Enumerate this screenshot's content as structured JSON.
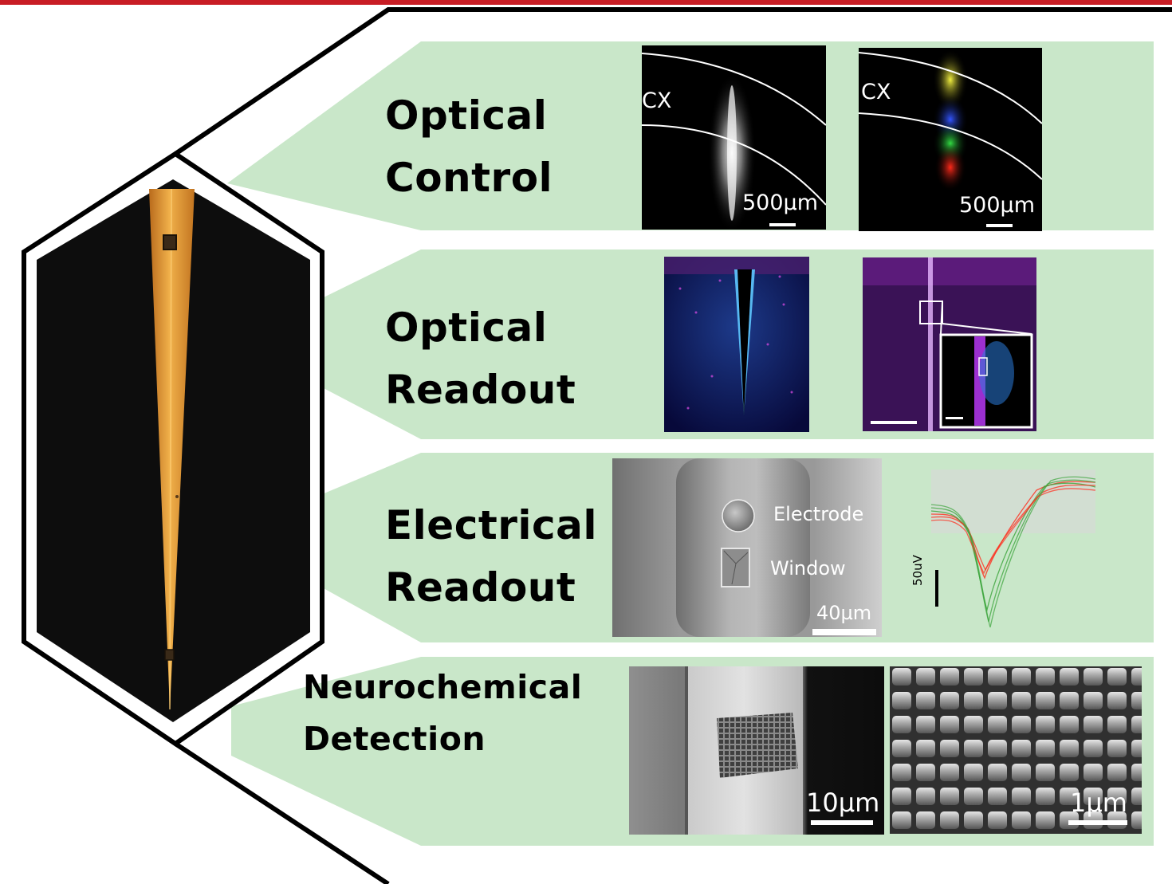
{
  "rows": [
    {
      "id": "optical-control",
      "title_lines": [
        "Optical",
        "Control"
      ]
    },
    {
      "id": "optical-readout",
      "title_lines": [
        "Optical",
        "Readout"
      ]
    },
    {
      "id": "electrical-readout",
      "title_lines": [
        "Electrical",
        "Readout"
      ]
    },
    {
      "id": "neurochemical-detection",
      "title_lines": [
        "Neurochemical",
        "Detection"
      ]
    }
  ],
  "panels": {
    "optical_control_left": {
      "region_label": "CX",
      "scale_bar": "500µm"
    },
    "optical_control_right": {
      "region_label": "CX",
      "scale_bar": "500µm"
    },
    "electrical_sem": {
      "electrode_label": "Electrode",
      "window_label": "Window",
      "scale_bar": "40µm"
    },
    "electrical_waveform": {
      "scale_label": "50uV"
    },
    "neuro_sem_left": {
      "scale_bar": "10µm"
    },
    "neuro_sem_right": {
      "scale_bar": "1µm"
    }
  },
  "colors": {
    "panel_green": "#c9e7c9",
    "accent_red": "#c81d25",
    "probe_orange": "#e8a23a"
  }
}
